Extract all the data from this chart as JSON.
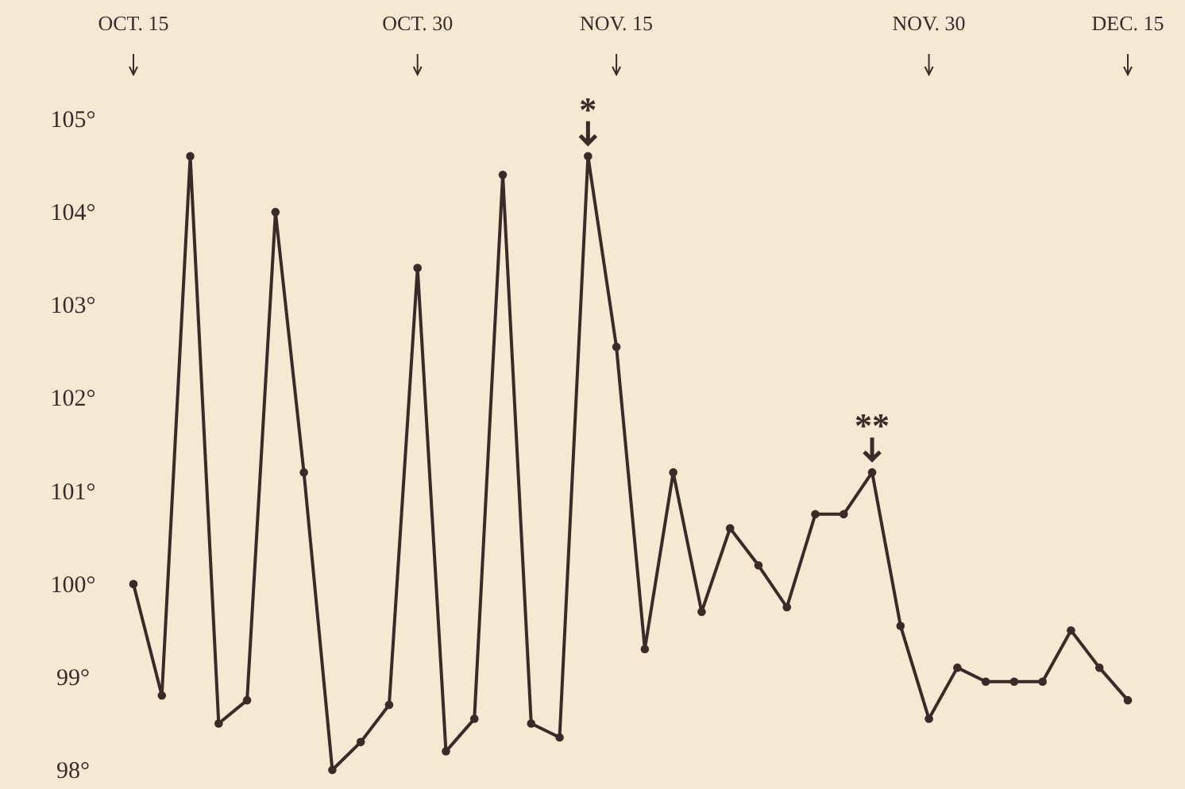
{
  "chart_data": {
    "type": "line",
    "categories": [
      "OCT. 15",
      null,
      null,
      null,
      null,
      null,
      null,
      null,
      null,
      null,
      "OCT. 30",
      null,
      null,
      null,
      null,
      null,
      null,
      "NOV. 15",
      null,
      null,
      null,
      null,
      null,
      null,
      null,
      null,
      null,
      null,
      "NOV. 30",
      null,
      null,
      null,
      null,
      null,
      null,
      "DEC. 15"
    ],
    "series": [
      {
        "color": "#3b2a28",
        "values": [
          100.0,
          98.8,
          104.6,
          98.5,
          98.75,
          104.0,
          101.2,
          98.0,
          98.3,
          98.7,
          103.4,
          98.2,
          98.55,
          104.4,
          98.5,
          98.35,
          104.6,
          102.55,
          99.3,
          101.2,
          99.7,
          100.6,
          100.2,
          99.75,
          100.75,
          100.75,
          101.2,
          99.55,
          98.55,
          99.1,
          98.95,
          98.95,
          98.95,
          99.5,
          99.1,
          98.75
        ]
      }
    ],
    "ylim": [
      98,
      105
    ],
    "yticks": [
      {
        "value": 98,
        "label": "98°"
      },
      {
        "value": 99,
        "label": "99°"
      },
      {
        "value": 100,
        "label": "100°"
      },
      {
        "value": 101,
        "label": "101°"
      },
      {
        "value": 102,
        "label": "102°"
      },
      {
        "value": 103,
        "label": "103°"
      },
      {
        "value": 104,
        "label": "104°"
      },
      {
        "value": 105,
        "label": "105°"
      }
    ],
    "marker": "circle",
    "line_style": "solid",
    "annotations": [
      {
        "text": "*",
        "y": 104.6
      },
      {
        "text": "**",
        "y": 101.2
      }
    ]
  }
}
